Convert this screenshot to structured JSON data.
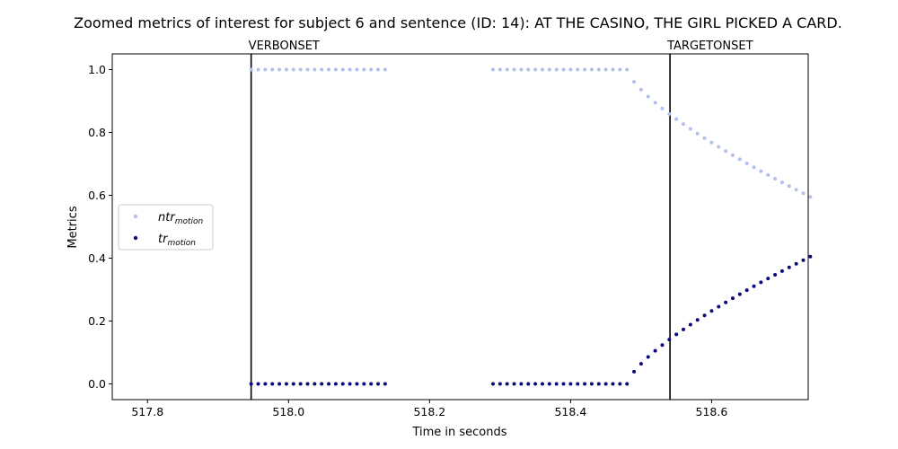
{
  "chart_data": {
    "type": "scatter",
    "title": "Zoomed metrics of interest for subject 6 and sentence (ID: 14): AT THE CASINO, THE GIRL PICKED A CARD.",
    "xlabel": "Time in seconds",
    "ylabel": "Metrics",
    "xlim": [
      517.75,
      518.737
    ],
    "ylim": [
      -0.05,
      1.05
    ],
    "x_ticks": [
      "517.8",
      "518.0",
      "518.2",
      "518.4",
      "518.6"
    ],
    "y_ticks": [
      "0.0",
      "0.2",
      "0.4",
      "0.6",
      "0.8",
      "1.0"
    ],
    "grid": false,
    "legend_position": "center-left",
    "vertical_lines": [
      {
        "label": "VERBONSET",
        "x": 517.947
      },
      {
        "label": "TARGETONSET",
        "x": 518.541
      }
    ],
    "series": [
      {
        "name": "ntr",
        "subscript": "motion",
        "color": "#b4c0ec",
        "segments": [
          {
            "x_start": 517.947,
            "x_end": 518.14,
            "step": 0.01,
            "curve": "constant",
            "value": 1.0
          },
          {
            "x_start": 518.29,
            "x_end": 518.47,
            "step": 0.01,
            "curve": "constant",
            "value": 1.0
          },
          {
            "x_start": 518.48,
            "x_end": 518.737,
            "step": 0.01,
            "curve": "decay",
            "from": 1.0,
            "to": 0.595
          }
        ]
      },
      {
        "name": "tr",
        "subscript": "motion",
        "color": "#0a0a7c",
        "segments": [
          {
            "x_start": 517.947,
            "x_end": 518.14,
            "step": 0.01,
            "curve": "constant",
            "value": 0.0
          },
          {
            "x_start": 518.29,
            "x_end": 518.47,
            "step": 0.01,
            "curve": "constant",
            "value": 0.0
          },
          {
            "x_start": 518.48,
            "x_end": 518.737,
            "step": 0.01,
            "curve": "rise",
            "from": 0.0,
            "to": 0.405
          }
        ]
      }
    ]
  }
}
